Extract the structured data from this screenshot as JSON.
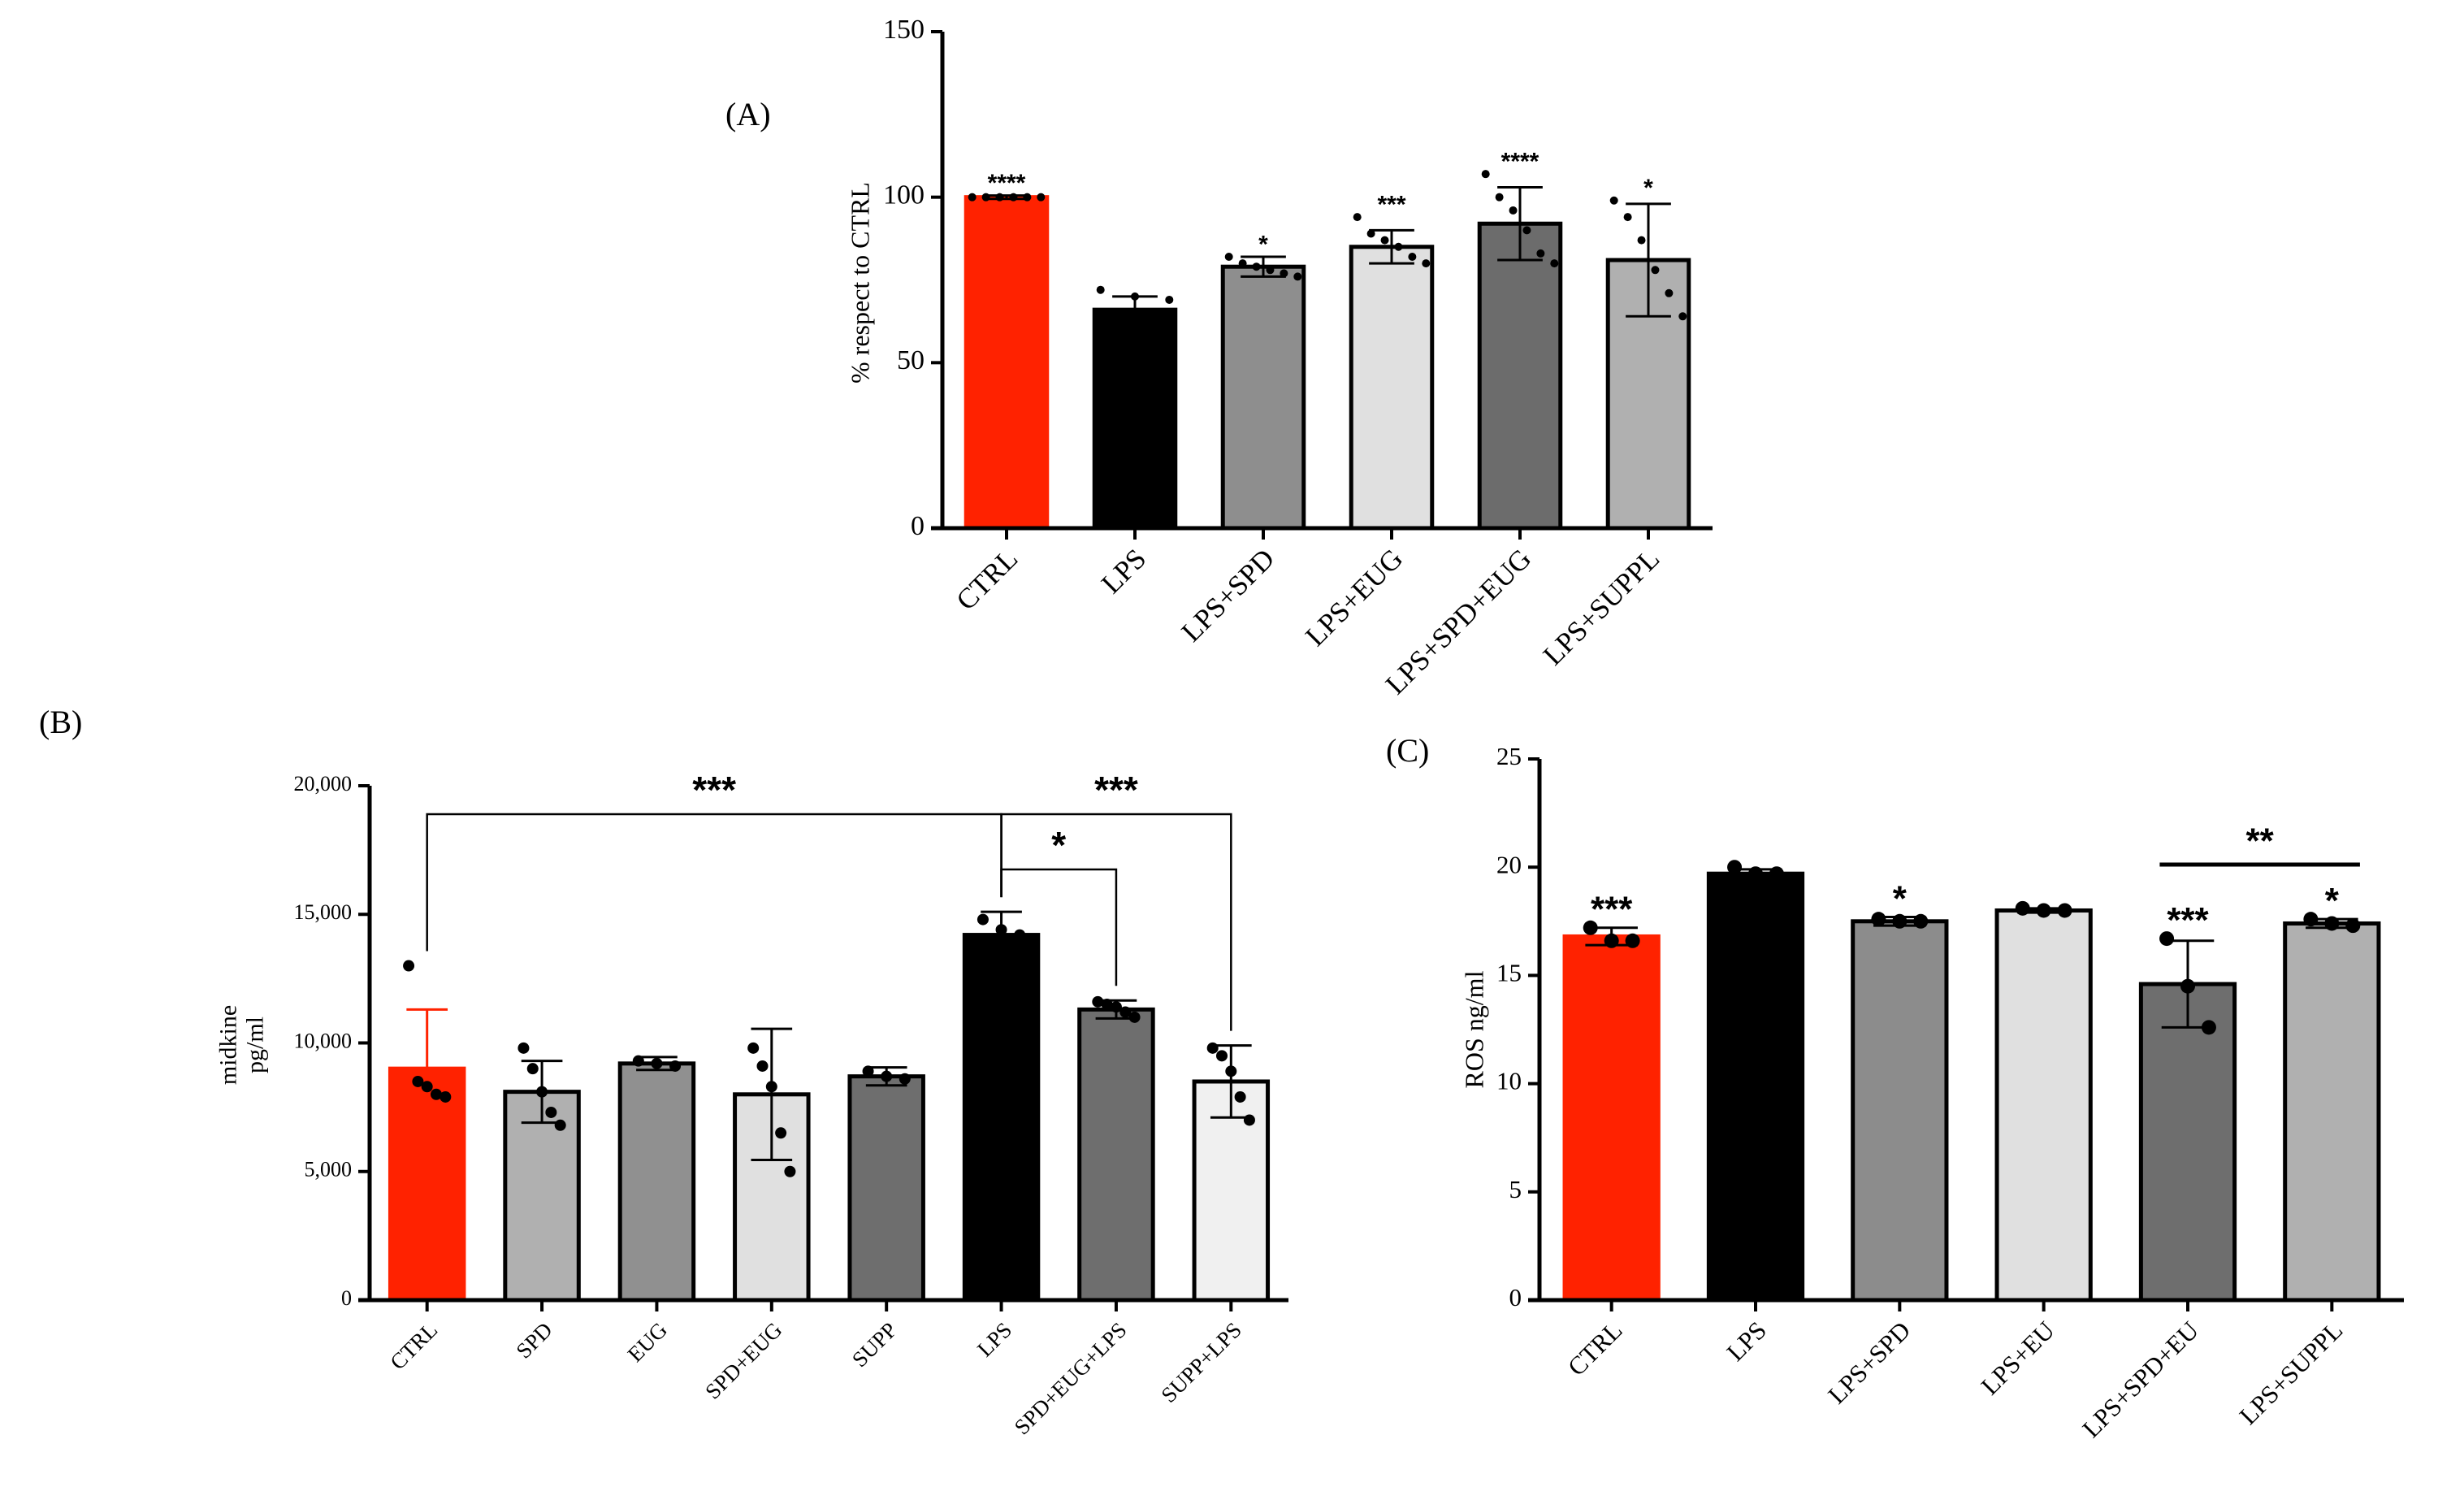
{
  "chart_data": [
    {
      "type": "bar",
      "panel": "(A)",
      "ylabel": "% respect to CTRL",
      "categories": [
        "CTRL",
        "LPS",
        "LPS+SPD",
        "LPS+EUG",
        "LPS+SPD+EUG",
        "LPS+SUPPL"
      ],
      "values": [
        100,
        66,
        79,
        85,
        92,
        81
      ],
      "errors": [
        0.5,
        4,
        3,
        5,
        11,
        17
      ],
      "points": [
        [
          100,
          100,
          100,
          100,
          100,
          100
        ],
        [
          72,
          70,
          69
        ],
        [
          82,
          80,
          79,
          78,
          77,
          76
        ],
        [
          94,
          89,
          87,
          85,
          82,
          80
        ],
        [
          107,
          100,
          96,
          90,
          83,
          80
        ],
        [
          99,
          94,
          87,
          78,
          71,
          64
        ]
      ],
      "annotations": [
        "****",
        null,
        "*",
        "***",
        "****",
        "*"
      ],
      "colors": [
        "#ff2200",
        "#000000",
        "#8e8e8e",
        "#e0e0e0",
        "#6c6c6c",
        "#b0b0b0"
      ],
      "edgecolors": [
        "#ff2200",
        "#000000",
        "#000000",
        "#000000",
        "#000000",
        "#000000"
      ],
      "ylim": [
        0,
        150
      ],
      "yticks": [
        0,
        50,
        100,
        150
      ]
    },
    {
      "type": "bar",
      "panel": "(B)",
      "ylabel": [
        "midkine",
        "pg/ml"
      ],
      "categories": [
        "CTRL",
        "SPD",
        "EUG",
        "SPD+EUG",
        "SUPP",
        "LPS",
        "SPD+EUG+LPS",
        "SUPP+LPS"
      ],
      "values": [
        9000,
        8100,
        9200,
        8000,
        8700,
        14200,
        11300,
        8500
      ],
      "errors": [
        2300,
        1200,
        250,
        2550,
        350,
        900,
        350,
        1400
      ],
      "points": [
        [
          13000,
          8500,
          8300,
          8000,
          7900
        ],
        [
          9800,
          9000,
          8100,
          7300,
          6800
        ],
        [
          9300,
          9200,
          9100
        ],
        [
          9800,
          9100,
          8300,
          6500,
          5000
        ],
        [
          8900,
          8700,
          8600
        ],
        [
          14800,
          14400,
          14200
        ],
        [
          11600,
          11500,
          11400,
          11200,
          11000
        ],
        [
          9800,
          9500,
          8900,
          7900,
          7000
        ]
      ],
      "comparisons": [
        {
          "between": [
            "CTRL",
            "LPS"
          ],
          "label": "***"
        },
        {
          "between": [
            "LPS",
            "SPD+EUG+LPS"
          ],
          "label": "*"
        },
        {
          "between": [
            "LPS",
            "SUPP+LPS"
          ],
          "label": "***"
        }
      ],
      "colors": [
        "#ff2200",
        "#b0b0b0",
        "#909090",
        "#e0e0e0",
        "#6e6e6e",
        "#000000",
        "#6e6e6e",
        "#f0f0f0"
      ],
      "edgecolors": [
        "#ff2200",
        "#000000",
        "#000000",
        "#000000",
        "#000000",
        "#000000",
        "#000000",
        "#000000"
      ],
      "ylim": [
        0,
        20000
      ],
      "yticks": [
        {
          "value": 0,
          "label": "0"
        },
        {
          "value": 5000,
          "label": "5,000"
        },
        {
          "value": 10000,
          "label": "10,000"
        },
        {
          "value": 15000,
          "label": "15,000"
        },
        {
          "value": 20000,
          "label": "20,000"
        }
      ]
    },
    {
      "type": "bar",
      "panel": "(C)",
      "ylabel": "ROS ng/ml",
      "categories": [
        "CTRL",
        "LPS",
        "LPS+SPD",
        "LPS+EU",
        "LPS+SPD+EU",
        "LPS+SUPPL"
      ],
      "values": [
        16.8,
        19.7,
        17.5,
        18.0,
        14.6,
        17.4
      ],
      "errors": [
        0.4,
        0.2,
        0.2,
        0.1,
        2.0,
        0.2
      ],
      "points": [
        [
          17.2,
          16.6,
          16.6
        ],
        [
          20.0,
          19.7,
          19.7
        ],
        [
          17.6,
          17.5,
          17.5
        ],
        [
          18.1,
          18.0,
          18.0
        ],
        [
          16.7,
          14.5,
          12.6
        ],
        [
          17.6,
          17.4,
          17.3
        ]
      ],
      "annotations": [
        "***",
        null,
        "*",
        null,
        "***",
        "*"
      ],
      "comparisons": [
        {
          "between": [
            "LPS+SPD+EU",
            "LPS+SUPPL"
          ],
          "label": "**"
        }
      ],
      "colors": [
        "#ff2200",
        "#000000",
        "#8c8c8c",
        "#e0e0e0",
        "#6e6e6e",
        "#b0b0b0"
      ],
      "edgecolors": [
        "#ff2200",
        "#000000",
        "#000000",
        "#000000",
        "#000000",
        "#000000"
      ],
      "ylim": [
        0,
        25
      ],
      "yticks": [
        0,
        5,
        10,
        15,
        20,
        25
      ]
    }
  ]
}
